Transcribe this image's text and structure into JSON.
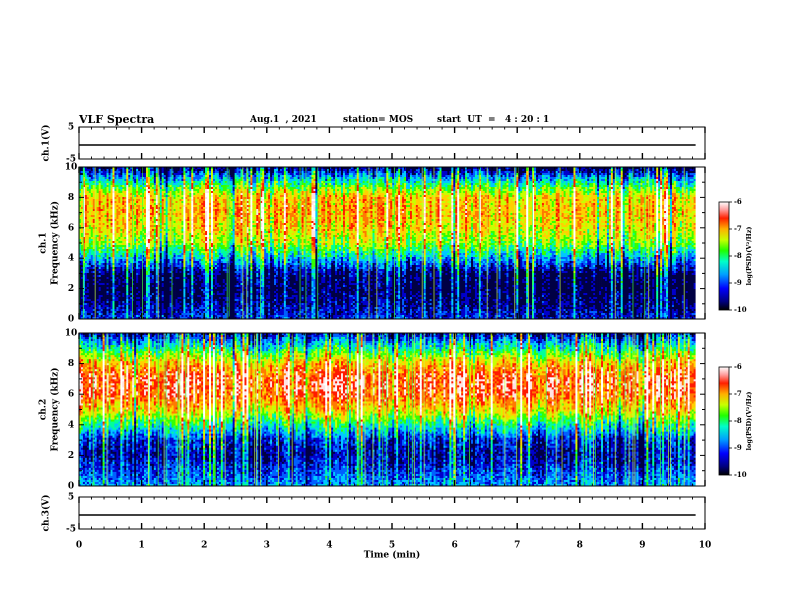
{
  "header": {
    "title": "VLF Spectra",
    "date": "Aug.1  , 2021",
    "station": "station= MOS",
    "start": "start  UT  =   4 : 20 : 1"
  },
  "colors": {
    "scale": [
      "#000044",
      "#0000cc",
      "#0060ff",
      "#00c8ff",
      "#00ff9a",
      "#34ff00",
      "#c8ff00",
      "#ffd000",
      "#ff7a00",
      "#ff1a00",
      "#ffe2e2",
      "#ffffff"
    ]
  },
  "chart_data": [
    {
      "type": "line",
      "name": "ch1-voltage",
      "ylabel": "ch.1(V)",
      "ylim": [
        -5,
        5
      ],
      "yticks": [
        5,
        -5
      ],
      "x": [
        0,
        10
      ],
      "values": [
        0,
        0
      ],
      "xlim": [
        0,
        10
      ]
    },
    {
      "type": "heatmap",
      "name": "ch1-spectrogram",
      "ylabel": "ch.1\nFrequency  (kHz)",
      "ylim": [
        0,
        10
      ],
      "yticks": [
        0,
        2,
        4,
        6,
        8,
        10
      ],
      "xlim": [
        0,
        10
      ],
      "data_extent_min": 9.85,
      "intensity_profile": [
        {
          "f": 0,
          "v": -9.4
        },
        {
          "f": 1,
          "v": -9.7
        },
        {
          "f": 2,
          "v": -9.9
        },
        {
          "f": 3,
          "v": -9.8
        },
        {
          "f": 4,
          "v": -8.9
        },
        {
          "f": 5,
          "v": -8.0
        },
        {
          "f": 6,
          "v": -7.6
        },
        {
          "f": 7,
          "v": -7.4
        },
        {
          "f": 8,
          "v": -7.5
        },
        {
          "f": 9,
          "v": -8.6
        },
        {
          "f": 10,
          "v": -9.9
        }
      ],
      "colorbar": {
        "label": "log(PSD)(V²/Hz)",
        "ticks": [
          -6,
          -7,
          -8,
          -9,
          -10
        ],
        "range": [
          -10,
          -6
        ]
      }
    },
    {
      "type": "heatmap",
      "name": "ch2-spectrogram",
      "ylabel": "ch.2\nFrequency  (kHz)",
      "ylim": [
        0,
        10
      ],
      "yticks": [
        0,
        2,
        4,
        6,
        8,
        10
      ],
      "xlim": [
        0,
        10
      ],
      "data_extent_min": 9.85,
      "intensity_profile": [
        {
          "f": 0,
          "v": -9.0
        },
        {
          "f": 1,
          "v": -9.3
        },
        {
          "f": 2,
          "v": -9.6
        },
        {
          "f": 3,
          "v": -9.4
        },
        {
          "f": 4,
          "v": -8.5
        },
        {
          "f": 5,
          "v": -7.5
        },
        {
          "f": 6,
          "v": -6.9
        },
        {
          "f": 7,
          "v": -6.8
        },
        {
          "f": 8,
          "v": -7.4
        },
        {
          "f": 9,
          "v": -8.5
        },
        {
          "f": 10,
          "v": -9.6
        }
      ],
      "colorbar": {
        "label": "log(PSD)(V²/Hz)",
        "ticks": [
          -6,
          -7,
          -8,
          -9,
          -10
        ],
        "range": [
          -10,
          -6
        ]
      }
    },
    {
      "type": "line",
      "name": "ch3-voltage",
      "ylabel": "ch.3(V)",
      "ylim": [
        -5,
        5
      ],
      "yticks": [
        5,
        -5
      ],
      "x": [
        0,
        10
      ],
      "values": [
        0,
        0
      ],
      "xlim": [
        0,
        10
      ],
      "xlabel": "Time  (min)",
      "xticks": [
        0,
        1,
        2,
        3,
        4,
        5,
        6,
        7,
        8,
        9,
        10
      ]
    }
  ]
}
